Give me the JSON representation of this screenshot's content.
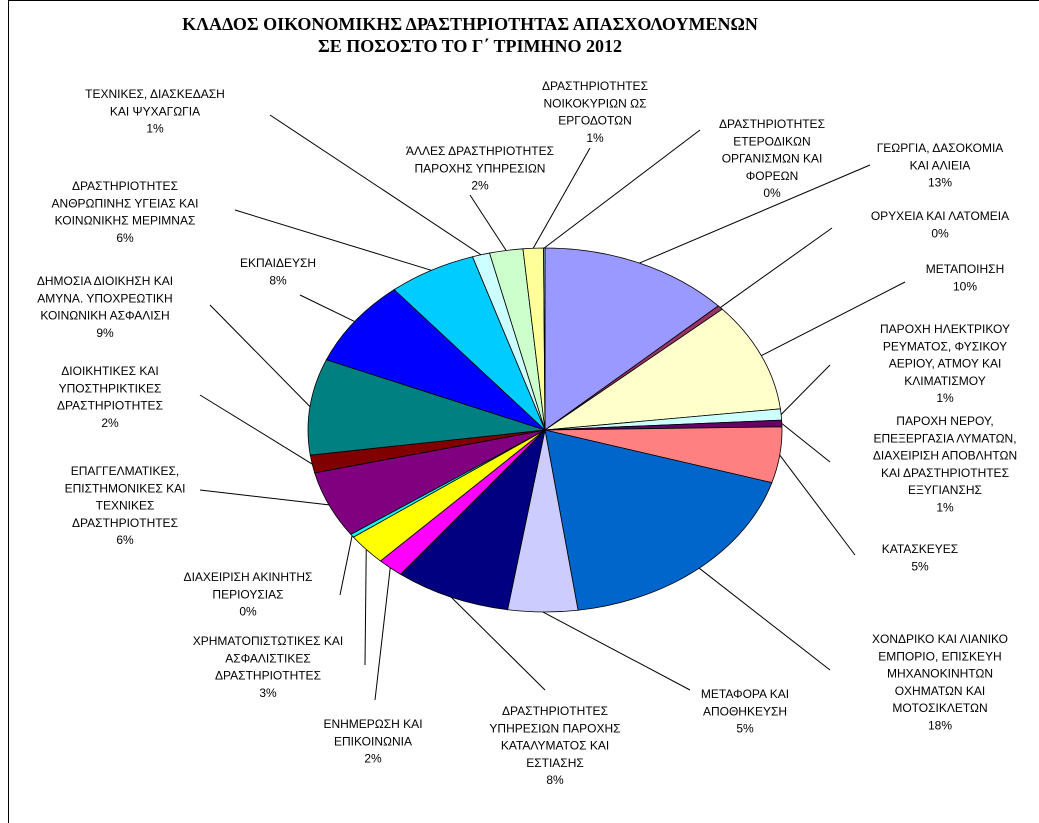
{
  "chart_data": {
    "type": "pie",
    "title": "ΚΛΑΔΟΣ ΟΙΚΟΝΟΜΙΚΗΣ ΔΡΑΣΤΗΡΙΟΤΗΤΑΣ ΑΠΑΣΧΟΛΟΥΜΕΝΩΝ\nΣΕ ΠΟΣΟΣΤΟ ΤΟ Γ΄ ΤΡΙΜΗΝΟ 2012",
    "categories": [
      "ΓΕΩΡΓΙΑ, ΔΑΣΟΚΟΜΙΑ\nΚΑΙ ΑΛΙΕΙΑ",
      "ΟΡΥΧΕΙΑ ΚΑΙ ΛΑΤΟΜΕΙΑ",
      "ΜΕΤΑΠΟΙΗΣΗ",
      "ΠΑΡΟΧΗ ΗΛΕΚΤΡΙΚΟΥ\nΡΕΥΜΑΤΟΣ, ΦΥΣΙΚΟΥ\nΑΕΡΙΟΥ, ΑΤΜΟΥ ΚΑΙ\nΚΛΙΜΑΤΙΣΜΟΥ",
      "ΠΑΡΟΧΗ ΝΕΡΟΥ,\nΕΠΕΞΕΡΓΑΣΙΑ ΛΥΜΑΤΩΝ,\nΔΙΑΧΕΙΡΙΣΗ ΑΠΟΒΛΗΤΩΝ\nΚΑΙ ΔΡΑΣΤΗΡΙΟΤΗΤΕΣ\nΕΞΥΓΙΑΝΣΗΣ",
      "ΚΑΤΑΣΚΕΥΕΣ",
      "ΧΟΝΔΡΙΚΟ ΚΑΙ ΛΙΑΝΙΚΟ\nΕΜΠΟΡΙΟ, ΕΠΙΣΚΕΥΗ\nΜΗΧΑΝΟΚΙΝΗΤΩΝ\nΟΧΗΜΑΤΩΝ ΚΑΙ\nΜΟΤΟΣΙΚΛΕΤΩΝ",
      "ΜΕΤΑΦΟΡΑ ΚΑΙ\nΑΠΟΘΗΚΕΥΣΗ",
      "ΔΡΑΣΤΗΡΙΟΤΗΤΕΣ\nΥΠΗΡΕΣΙΩΝ ΠΑΡΟΧΗΣ\nΚΑΤΑΛΥΜΑΤΟΣ ΚΑΙ\nΕΣΤΙΑΣΗΣ",
      "ΕΝΗΜΕΡΩΣΗ ΚΑΙ\nΕΠΙΚΟΙΝΩΝΙΑ",
      "ΧΡΗΜΑΤΟΠΙΣΤΩΤΙΚΕΣ ΚΑΙ\nΑΣΦΑΛΙΣΤΙΚΕΣ\nΔΡΑΣΤΗΡΙΟΤΗΤΕΣ",
      "ΔΙΑΧΕΙΡΙΣΗ ΑΚΙΝΗΤΗΣ\nΠΕΡΙΟΥΣΙΑΣ",
      "ΕΠΑΓΓΕΛΜΑΤΙΚΕΣ,\nΕΠΙΣΤΗΜΟΝΙΚΕΣ ΚΑΙ\nΤΕΧΝΙΚΕΣ\nΔΡΑΣΤΗΡΙΟΤΗΤΕΣ",
      "ΔΙΟΙΚΗΤΙΚΕΣ ΚΑΙ\nΥΠΟΣΤΗΡΙΚΤΙΚΕΣ\nΔΡΑΣΤΗΡΙΟΤΗΤΕΣ",
      "ΔΗΜΟΣΙΑ ΔΙΟΙΚΗΣΗ ΚΑΙ\nΑΜΥΝΑ. ΥΠΟΧΡΕΩΤΙΚΗ\nΚΟΙΝΩΝΙΚΗ ΑΣΦΑΛΙΣΗ",
      "ΕΚΠΑΙΔΕΥΣΗ",
      "ΔΡΑΣΤΗΡΙΟΤΗΤΕΣ\nΑΝΘΡΩΠΙΝΗΣ ΥΓΕΙΑΣ ΚΑΙ\nΚΟΙΝΩΝΙΚΗΣ ΜΕΡΙΜΝΑΣ",
      "ΤΕΧΝΙΚΕΣ, ΔΙΑΣΚΕΔΑΣΗ\nΚΑΙ ΨΥΧΑΓΩΓΙΑ",
      "ΆΛΛΕΣ ΔΡΑΣΤΗΡΙΟΤΗΤΕΣ\nΠΑΡΟΧΗΣ ΥΠΗΡΕΣΙΩΝ",
      "ΔΡΑΣΤΗΡΙΟΤΗΤΕΣ\nΝΟΙΚΟΚΥΡΙΩΝ ΩΣ\nΕΡΓΟΔΟΤΩΝ",
      "ΔΡΑΣΤΗΡΙΟΤΗΤΕΣ\nΕΤΕΡΟΔΙΚΩΝ\nΟΡΓΑΝΙΣΜΩΝ ΚΑΙ\nΦΟΡΕΩΝ"
    ],
    "values": [
      13.2,
      0.4,
      9.8,
      1.0,
      0.6,
      5.0,
      18.3,
      4.8,
      8.0,
      1.8,
      2.8,
      0.3,
      6.0,
      1.6,
      8.6,
      7.8,
      6.1,
      1.2,
      2.3,
      1.4,
      0.1
    ],
    "value_labels": [
      "13%",
      "0%",
      "10%",
      "1%",
      "1%",
      "5%",
      "18%",
      "5%",
      "8%",
      "2%",
      "3%",
      "0%",
      "6%",
      "2%",
      "9%",
      "8%",
      "6%",
      "1%",
      "2%",
      "1%",
      "0%"
    ],
    "colors": [
      "#9999ff",
      "#993366",
      "#ffffcc",
      "#ccffff",
      "#660066",
      "#ff8080",
      "#0066cc",
      "#ccccff",
      "#000080",
      "#ff00ff",
      "#ffff00",
      "#00ffff",
      "#800080",
      "#800000",
      "#008080",
      "#0000ff",
      "#00ccff",
      "#ccffff",
      "#ccffcc",
      "#ffff99",
      "#99ccff"
    ]
  }
}
